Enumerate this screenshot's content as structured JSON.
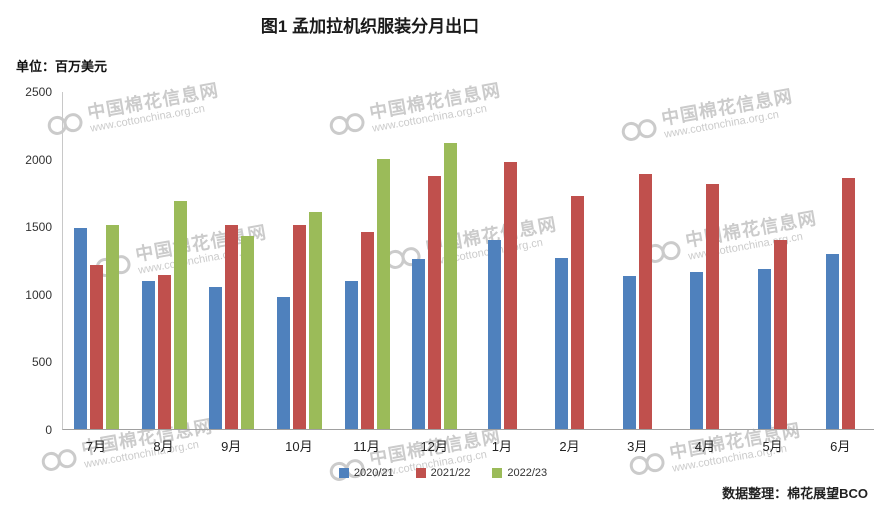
{
  "source": "数据整理：棉花展望BCO",
  "watermark": {
    "name": "中国棉花信息网",
    "url": "www.cottonchina.org.cn"
  },
  "chart_data": {
    "type": "bar",
    "title": "图1 孟加拉机织服装分月出口",
    "unit_label": "单位：百万美元",
    "ylabel": "百万美元",
    "categories": [
      "7月",
      "8月",
      "9月",
      "10月",
      "11月",
      "12月",
      "1月",
      "2月",
      "3月",
      "4月",
      "5月",
      "6月"
    ],
    "series": [
      {
        "name": "2020/21",
        "color": "#4f81bd",
        "values": [
          1490,
          1100,
          1050,
          980,
          1095,
          1260,
          1400,
          1270,
          1135,
          1165,
          1185,
          1300
        ]
      },
      {
        "name": "2021/22",
        "color": "#c0504d",
        "values": [
          1220,
          1145,
          1510,
          1510,
          1460,
          1880,
          1980,
          1725,
          1890,
          1815,
          1405,
          1865
        ]
      },
      {
        "name": "2022/23",
        "color": "#9bbb59",
        "values": [
          1510,
          1690,
          1430,
          1610,
          2000,
          2120,
          null,
          null,
          null,
          null,
          null,
          null
        ]
      }
    ],
    "ylim": [
      0,
      2500
    ],
    "ytick_step": 500,
    "grid": false,
    "legend_position": "bottom"
  }
}
